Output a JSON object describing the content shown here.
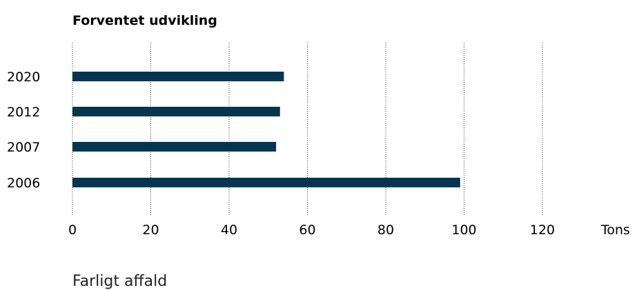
{
  "chart_data": {
    "type": "bar",
    "orientation": "horizontal",
    "title": "Forventet udvikling",
    "categories": [
      "2020",
      "2012",
      "2007",
      "2006"
    ],
    "values": [
      54,
      53,
      52,
      99
    ],
    "xlim": [
      0,
      140
    ],
    "xticks": [
      "0",
      "20",
      "40",
      "60",
      "80",
      "100",
      "120"
    ],
    "x_unit_label": "Tons",
    "grid": "vertical dotted",
    "bar_color": "#06354f"
  },
  "caption": "Farligt affald"
}
